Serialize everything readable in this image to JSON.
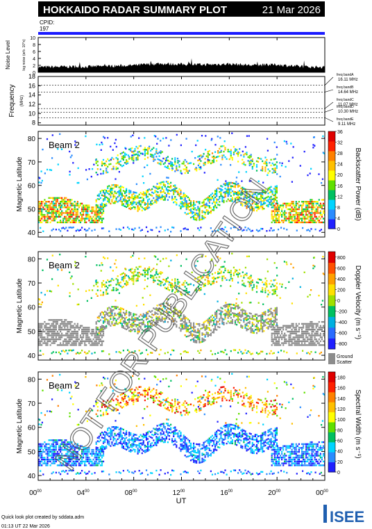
{
  "header": {
    "title": "HOKKAIDO RADAR SUMMARY PLOT",
    "date": "21 Mar 2026",
    "cpid_label": "CPID:",
    "cpid_value": "197"
  },
  "watermark": "NOT FOR PUBLICATION",
  "footer": {
    "credit": "Quick look plot created by sddata.adm",
    "timestamp": "01:13 UT 22 Mar 2026",
    "logo_text": "ISEE"
  },
  "colors": {
    "cpid_bar": "#1a1aff",
    "ground_scatter": "#8c8c8c",
    "panel_border": "#000000",
    "logo_green": "#2e9e3e",
    "logo_blue": "#1f5fb0"
  },
  "chart_data": [
    {
      "type": "area",
      "ylabel": "Noise Level",
      "ylabel_sub": "log noise (arb. 10^x)",
      "ylim": [
        0,
        10
      ],
      "yticks": [
        "0",
        "2",
        "4",
        "6",
        "8",
        "10"
      ],
      "series": [
        {
          "x": [
            0,
            2,
            4,
            6,
            8,
            10,
            12,
            14,
            16,
            18,
            20,
            22,
            24
          ],
          "values": [
            1.5,
            1.6,
            1.6,
            1.8,
            2.0,
            2.5,
            2.3,
            2.2,
            2.4,
            2.0,
            2.2,
            1.6,
            1.5
          ]
        }
      ]
    },
    {
      "type": "line",
      "ylabel": "Frequency",
      "ylabel_sub": "(MHz)",
      "ylim": [
        7.5,
        18
      ],
      "yticks": [
        "8",
        "10",
        "12",
        "14",
        "16",
        "18"
      ],
      "levels": [
        16.11,
        14.64,
        11.07,
        10.3,
        9.11
      ],
      "band_labels": [
        {
          "name": "freq bandA",
          "value": "16.11 MHz"
        },
        {
          "name": "freq bandB",
          "value": "14.64 MHz"
        },
        {
          "name": "freq bandC",
          "value": "11.07 MHz"
        },
        {
          "name": "freq bandD",
          "value": "10.30 MHz"
        },
        {
          "name": "freq bandE",
          "value": "9.11 MHz"
        }
      ]
    },
    {
      "type": "heatmap",
      "beam_label": "Beam  2",
      "ylabel": "Magnetic Latitude",
      "ylim": [
        38,
        83
      ],
      "yticks": [
        "40",
        "50",
        "60",
        "70",
        "80"
      ],
      "colorbar_title": "Backscatter Power (dB)",
      "colorbar_ticks": [
        "0",
        "4",
        "8",
        "12",
        "16",
        "20",
        "24",
        "28",
        "32",
        "36"
      ],
      "colorbar_range": [
        0,
        36
      ],
      "colorbar_colors": [
        "#2020ff",
        "#2a8cff",
        "#00d4ff",
        "#00c060",
        "#60e000",
        "#ffff00",
        "#ffc000",
        "#ff8000",
        "#ff2000",
        "#e00000"
      ]
    },
    {
      "type": "heatmap",
      "beam_label": "Beam  2",
      "ylabel": "Magnetic Latitude",
      "ylim": [
        38,
        83
      ],
      "yticks": [
        "40",
        "50",
        "60",
        "70",
        "80"
      ],
      "colorbar_title": "Doppler Velocity (m s⁻¹)",
      "colorbar_ticks": [
        "800",
        "600",
        "400",
        "200",
        "0",
        "-200",
        "-400",
        "-600",
        "-800"
      ],
      "colorbar_range": [
        -900,
        900
      ],
      "colorbar_colors": [
        "#e00000",
        "#ff5000",
        "#ffa000",
        "#ffe000",
        "#a0e000",
        "#00c060",
        "#00b0e0",
        "#2a6cff",
        "#2020ff"
      ],
      "ground_scatter_label": [
        "Ground",
        "Scatter"
      ]
    },
    {
      "type": "heatmap",
      "beam_label": "Beam  2",
      "ylabel": "Magnetic Latitude",
      "ylim": [
        38,
        83
      ],
      "yticks": [
        "40",
        "50",
        "60",
        "70",
        "80"
      ],
      "colorbar_title": "Spectral Width (m s⁻¹)",
      "colorbar_ticks": [
        "0",
        "20",
        "40",
        "60",
        "80",
        "100",
        "120",
        "140",
        "160",
        "180"
      ],
      "colorbar_range": [
        0,
        190
      ],
      "colorbar_colors": [
        "#2020ff",
        "#2a8cff",
        "#00d4ff",
        "#00c060",
        "#60e000",
        "#ffff00",
        "#ffc000",
        "#ff8000",
        "#ff2000",
        "#e00000"
      ]
    }
  ],
  "x_axis": {
    "label": "UT",
    "ticks": [
      {
        "hour": 0,
        "main": "00",
        "sup": "00"
      },
      {
        "hour": 4,
        "main": "04",
        "sup": "00"
      },
      {
        "hour": 8,
        "main": "08",
        "sup": "00"
      },
      {
        "hour": 12,
        "main": "12",
        "sup": "00"
      },
      {
        "hour": 16,
        "main": "16",
        "sup": "00"
      },
      {
        "hour": 20,
        "main": "20",
        "sup": "00"
      },
      {
        "hour": 24,
        "main": "00",
        "sup": "00"
      }
    ]
  }
}
